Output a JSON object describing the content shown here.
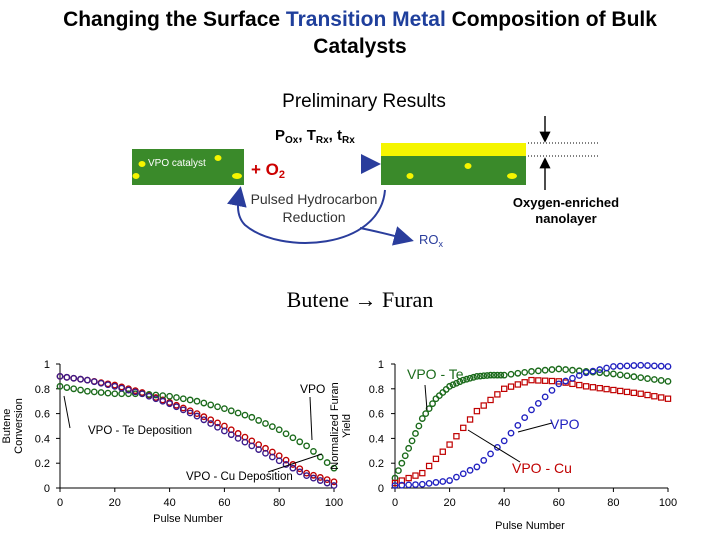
{
  "title": {
    "part1": "Changing the Surface ",
    "highlight": "Transition Metal",
    "part2": " Composition of Bulk",
    "line2": "Catalysts"
  },
  "subtitle": "Preliminary Results",
  "schematic": {
    "conditions": "P",
    "conditions_sub1": "Ox",
    "conditions_mid1": ", T",
    "conditions_sub2": "Rx",
    "conditions_mid2": ", t",
    "conditions_sub3": "Rx",
    "catalyst_label": "VPO catalyst",
    "oxygen_plus": "+ O",
    "oxygen_sub": "2",
    "reduction_line1": "Pulsed Hydrocarbon",
    "reduction_line2": "Reduction",
    "product": "RO",
    "product_sub": "x",
    "nanolayer_line1": "Oxygen-enriched",
    "nanolayer_line2": "nanolayer",
    "colors": {
      "bulk": "#3a8a2a",
      "layer": "#f5f500",
      "arrow": "#2a3d9c",
      "plus": "#cc0000"
    }
  },
  "equation": "Butene → Furan",
  "chart_data": [
    {
      "type": "scatter",
      "title": "",
      "xlabel": "Pulse Number",
      "ylabel": "Butene Conversion",
      "xlim": [
        0,
        100
      ],
      "ylim": [
        0,
        1
      ],
      "xticks": [
        "0",
        "20",
        "40",
        "60",
        "80",
        "100"
      ],
      "yticks": [
        "0",
        "0.2",
        "0.4",
        "0.6",
        "0.8",
        "1"
      ],
      "series": [
        {
          "name": "VPO",
          "color": "#c00000",
          "marker": "circle",
          "x": [
            0,
            10,
            20,
            30,
            40,
            50,
            60,
            70,
            80,
            90,
            100
          ],
          "y": [
            0.9,
            0.87,
            0.83,
            0.77,
            0.69,
            0.6,
            0.5,
            0.38,
            0.26,
            0.12,
            0.05
          ]
        },
        {
          "name": "VPO - Te Deposition",
          "color": "#1a6a1a",
          "marker": "circle",
          "x": [
            0,
            10,
            20,
            30,
            40,
            50,
            60,
            70,
            80,
            90,
            100
          ],
          "y": [
            0.82,
            0.78,
            0.76,
            0.76,
            0.74,
            0.7,
            0.64,
            0.57,
            0.47,
            0.34,
            0.16
          ]
        },
        {
          "name": "VPO - Cu Deposition",
          "color": "#3a1a8a",
          "marker": "circle",
          "x": [
            0,
            10,
            20,
            30,
            40,
            50,
            60,
            70,
            80,
            90,
            100
          ],
          "y": [
            0.9,
            0.87,
            0.82,
            0.76,
            0.68,
            0.58,
            0.46,
            0.34,
            0.22,
            0.1,
            0.02
          ]
        }
      ]
    },
    {
      "type": "scatter",
      "title": "",
      "xlabel": "Pulse Number",
      "ylabel": "Normalized Furan Yield",
      "xlim": [
        0,
        100
      ],
      "ylim": [
        0,
        1
      ],
      "xticks": [
        "0",
        "20",
        "40",
        "60",
        "80",
        "100"
      ],
      "yticks": [
        "0",
        "0.2",
        "0.4",
        "0.6",
        "0.8",
        "1"
      ],
      "series": [
        {
          "name": "VPO - Te",
          "color": "#1a6a1a",
          "marker": "circle",
          "x": [
            0,
            5,
            10,
            15,
            20,
            25,
            30,
            35,
            40,
            50,
            60,
            70,
            80,
            90,
            100
          ],
          "y": [
            0.08,
            0.32,
            0.56,
            0.72,
            0.82,
            0.87,
            0.9,
            0.91,
            0.91,
            0.94,
            0.96,
            0.94,
            0.92,
            0.89,
            0.86
          ]
        },
        {
          "name": "VPO - Cu",
          "color": "#c00000",
          "marker": "square",
          "x": [
            0,
            10,
            20,
            30,
            40,
            50,
            60,
            70,
            80,
            90,
            100
          ],
          "y": [
            0.04,
            0.12,
            0.35,
            0.62,
            0.8,
            0.87,
            0.86,
            0.82,
            0.79,
            0.76,
            0.72
          ]
        },
        {
          "name": "VPO",
          "color": "#2020c0",
          "marker": "circle",
          "x": [
            0,
            10,
            20,
            30,
            40,
            50,
            60,
            70,
            80,
            90,
            100
          ],
          "y": [
            0.02,
            0.03,
            0.06,
            0.17,
            0.38,
            0.63,
            0.84,
            0.93,
            0.98,
            0.99,
            0.98
          ]
        }
      ]
    }
  ]
}
